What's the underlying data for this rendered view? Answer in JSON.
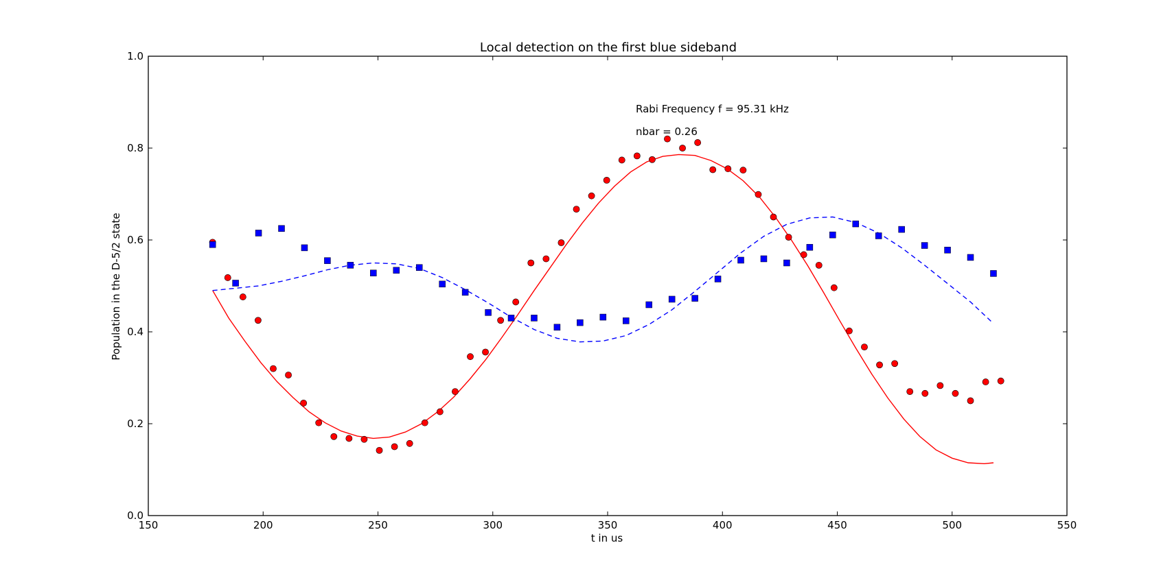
{
  "chart_data": {
    "type": "scatter",
    "title": "Local detection on the first blue sideband",
    "xlabel": "t in us",
    "ylabel": "Population in the D-5/2 state",
    "xlim": [
      150,
      550
    ],
    "ylim": [
      0.0,
      1.0
    ],
    "xticks": [
      "150",
      "200",
      "250",
      "300",
      "350",
      "400",
      "450",
      "500",
      "550"
    ],
    "yticks": [
      "0.0",
      "0.2",
      "0.4",
      "0.6",
      "0.8",
      "1.0"
    ],
    "grid": false,
    "annotations": [
      "Rabi Frequency f = 95.31 kHz",
      "nbar = 0.26"
    ],
    "colors": {
      "red": "#ff0000",
      "blue": "#0000ff"
    },
    "series": [
      {
        "marker": "circle",
        "color": "#ff0000",
        "x": [
          178,
          184.6,
          191.2,
          197.8,
          204.4,
          211,
          217.6,
          224.2,
          230.8,
          237.4,
          244,
          250.6,
          257.2,
          263.8,
          270.4,
          277,
          283.6,
          290.2,
          296.8,
          303.4,
          310,
          316.6,
          323.2,
          329.8,
          336.4,
          343,
          349.6,
          356.2,
          362.8,
          369.4,
          376,
          382.6,
          389.2,
          395.8,
          402.4,
          409,
          415.6,
          422.2,
          428.8,
          435.4,
          442,
          448.6,
          455.2,
          461.8,
          468.4,
          475,
          481.6,
          488.2,
          494.8,
          501.4,
          508,
          514.6,
          521.2
        ],
        "y": [
          0.595,
          0.518,
          0.476,
          0.425,
          0.32,
          0.306,
          0.245,
          0.202,
          0.172,
          0.168,
          0.166,
          0.142,
          0.15,
          0.157,
          0.202,
          0.226,
          0.27,
          0.346,
          0.356,
          0.425,
          0.465,
          0.55,
          0.559,
          0.594,
          0.667,
          0.696,
          0.73,
          0.774,
          0.783,
          0.775,
          0.82,
          0.8,
          0.812,
          0.753,
          0.755,
          0.752,
          0.699,
          0.65,
          0.606,
          0.568,
          0.545,
          0.496,
          0.402,
          0.367,
          0.328,
          0.331,
          0.27,
          0.266,
          0.283,
          0.266,
          0.25,
          0.291,
          0.293
        ]
      },
      {
        "marker": "square",
        "color": "#0000ff",
        "x": [
          178,
          188,
          198,
          208,
          218,
          228,
          238,
          248,
          258,
          268,
          278,
          288,
          298,
          308,
          318,
          328,
          338,
          348,
          358,
          368,
          378,
          388,
          398,
          408,
          418,
          428,
          438,
          448,
          458,
          468,
          478,
          488,
          498,
          508,
          518
        ],
        "y": [
          0.59,
          0.506,
          0.615,
          0.625,
          0.583,
          0.555,
          0.545,
          0.528,
          0.534,
          0.54,
          0.504,
          0.486,
          0.442,
          0.43,
          0.43,
          0.41,
          0.42,
          0.432,
          0.424,
          0.459,
          0.471,
          0.473,
          0.515,
          0.556,
          0.559,
          0.55,
          0.584,
          0.611,
          0.635,
          0.609,
          0.623,
          0.588,
          0.578,
          0.562,
          0.527
        ]
      },
      {
        "marker": "line",
        "linestyle": "solid",
        "color": "#ff0000",
        "x": [
          178,
          185,
          192,
          199,
          206,
          213,
          220,
          227,
          234,
          241,
          248,
          255,
          262,
          269,
          276,
          283,
          290,
          297,
          304,
          311,
          318,
          325,
          332,
          339,
          346,
          353,
          360,
          367,
          374,
          381,
          388,
          395,
          402,
          409,
          416,
          423,
          430,
          437,
          444,
          451,
          458,
          465,
          472,
          479,
          486,
          493,
          500,
          507,
          514,
          518
        ],
        "y": [
          0.49,
          0.43,
          0.38,
          0.333,
          0.292,
          0.257,
          0.226,
          0.202,
          0.184,
          0.173,
          0.168,
          0.171,
          0.182,
          0.2,
          0.226,
          0.258,
          0.297,
          0.34,
          0.388,
          0.438,
          0.49,
          0.54,
          0.59,
          0.637,
          0.68,
          0.717,
          0.748,
          0.77,
          0.782,
          0.786,
          0.784,
          0.773,
          0.755,
          0.729,
          0.694,
          0.65,
          0.6,
          0.545,
          0.486,
          0.425,
          0.365,
          0.308,
          0.256,
          0.21,
          0.172,
          0.143,
          0.125,
          0.115,
          0.113,
          0.115
        ]
      },
      {
        "marker": "line",
        "linestyle": "dashed",
        "color": "#0000ff",
        "x": [
          178,
          188,
          198,
          208,
          218,
          228,
          238,
          248,
          258,
          268,
          278,
          288,
          298,
          308,
          318,
          328,
          338,
          348,
          358,
          368,
          378,
          388,
          398,
          408,
          418,
          428,
          438,
          448,
          458,
          468,
          478,
          488,
          498,
          508,
          518
        ],
        "y": [
          0.49,
          0.495,
          0.5,
          0.51,
          0.522,
          0.535,
          0.545,
          0.55,
          0.548,
          0.538,
          0.518,
          0.492,
          0.463,
          0.432,
          0.405,
          0.386,
          0.378,
          0.38,
          0.392,
          0.416,
          0.448,
          0.488,
          0.53,
          0.572,
          0.608,
          0.634,
          0.648,
          0.65,
          0.638,
          0.615,
          0.583,
          0.545,
          0.505,
          0.465,
          0.418
        ]
      }
    ]
  }
}
